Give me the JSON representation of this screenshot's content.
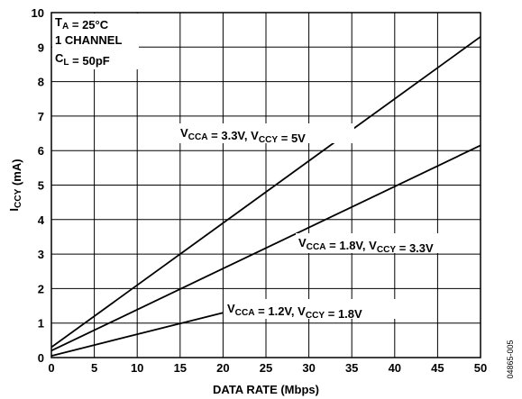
{
  "chart_data": {
    "type": "line",
    "xlabel": "DATA RATE (Mbps)",
    "ylabel": {
      "main": "I",
      "sub": "CCY",
      "unit": " (mA)"
    },
    "xlim": [
      0,
      50
    ],
    "ylim": [
      0,
      10
    ],
    "x_ticks": [
      0,
      5,
      10,
      15,
      20,
      25,
      30,
      35,
      40,
      45,
      50
    ],
    "y_ticks": [
      0,
      1,
      2,
      3,
      4,
      5,
      6,
      7,
      8,
      9,
      10
    ],
    "grid": true,
    "conditions": [
      {
        "parts": [
          {
            "t": "T"
          },
          {
            "t": "A",
            "sub": true
          },
          {
            "t": " = 25°C"
          }
        ]
      },
      {
        "parts": [
          {
            "t": "1 CHANNEL"
          }
        ]
      },
      {
        "parts": [
          {
            "t": "C"
          },
          {
            "t": "L",
            "sub": true
          },
          {
            "t": " = 50pF"
          }
        ]
      }
    ],
    "series": [
      {
        "label_parts": [
          {
            "t": "V"
          },
          {
            "t": "CCA",
            "sub": true
          },
          {
            "t": " = 3.3V, V"
          },
          {
            "t": "CCY",
            "sub": true
          },
          {
            "t": " = 5V"
          }
        ],
        "x": [
          0,
          50
        ],
        "y": [
          0.3,
          9.3
        ]
      },
      {
        "label_parts": [
          {
            "t": "V"
          },
          {
            "t": "CCA",
            "sub": true
          },
          {
            "t": " = 1.8V, V"
          },
          {
            "t": "CCY",
            "sub": true
          },
          {
            "t": " = 3.3V"
          }
        ],
        "x": [
          0,
          50
        ],
        "y": [
          0.2,
          6.15
        ]
      },
      {
        "label_parts": [
          {
            "t": "V"
          },
          {
            "t": "CCA",
            "sub": true
          },
          {
            "t": " = 1.2V, V"
          },
          {
            "t": "CCY",
            "sub": true
          },
          {
            "t": " = 1.8V"
          }
        ],
        "x": [
          0,
          20
        ],
        "y": [
          0.05,
          1.3
        ]
      }
    ],
    "figure_id": "04865-005"
  }
}
